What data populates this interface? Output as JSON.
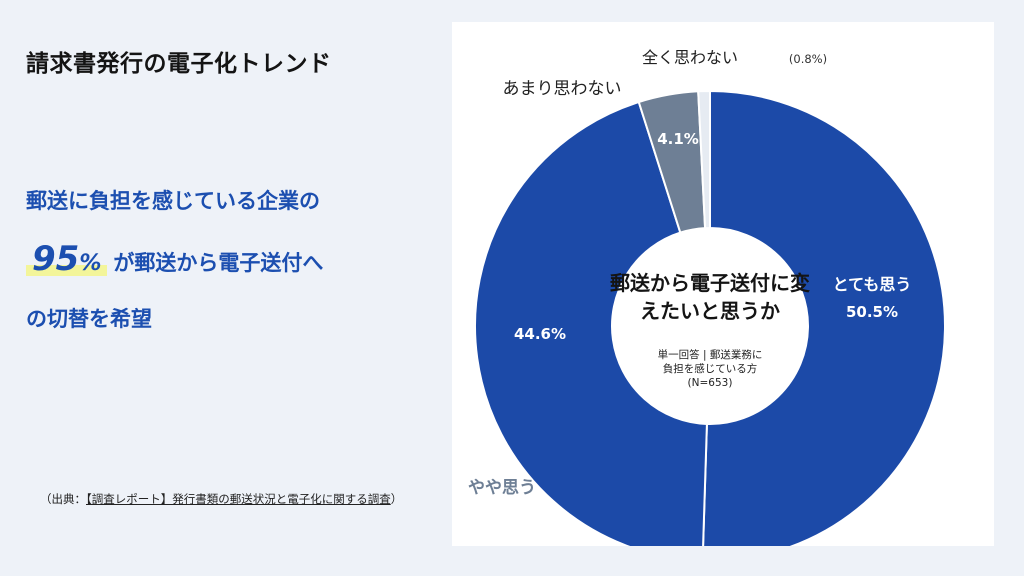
{
  "page": {
    "title": "請求書発行の電子化トレンド",
    "message": {
      "line1": "郵送に負担を感じている企業の",
      "highlight_value": "95",
      "highlight_unit": "%",
      "line2_rest": "が郵送から電子送付へ",
      "line3": "の切替を希望"
    },
    "source": {
      "prefix": "（出典：",
      "link_text": "【調査レポート】発行書類の郵送状況と電子化に関する調査",
      "suffix": "）"
    }
  },
  "chart_data": {
    "type": "donut",
    "title": "郵送から電子送付に変えたいと思うか",
    "subtitle_lines": [
      "単一回答 | 郵送業務に",
      "負担を感じている方",
      "(N=653)"
    ],
    "slices": [
      {
        "label": "とても思う",
        "value": 50.5,
        "value_label": "50.5%",
        "color": "#1c4aa8"
      },
      {
        "label": "やや思う",
        "value": 44.6,
        "value_label": "44.6%",
        "color": "#1c4aa8"
      },
      {
        "label": "あまり思わない",
        "value": 4.1,
        "value_label": "4.1%",
        "color": "#6e7f95"
      },
      {
        "label": "全く思わない",
        "value": 0.8,
        "value_label": "(0.8%)",
        "color": "#e6ebf2"
      }
    ]
  }
}
